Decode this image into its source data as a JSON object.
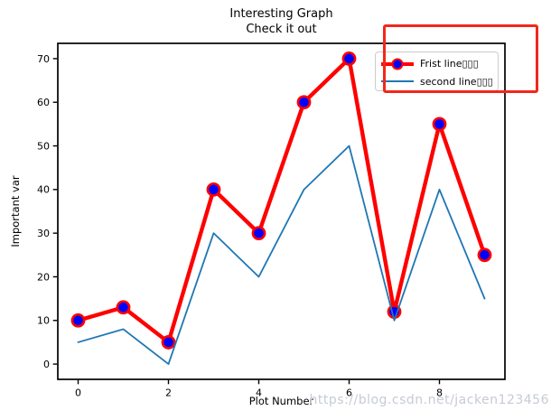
{
  "title": {
    "line1": "Interesting Graph",
    "line2": "Check it out"
  },
  "axes": {
    "xlabel": "Plot Number",
    "ylabel": "Important var",
    "x_ticks": [
      0,
      2,
      4,
      6,
      8
    ],
    "y_ticks": [
      0,
      10,
      20,
      30,
      40,
      50,
      60,
      70
    ],
    "spine_color": "#000000"
  },
  "chart_data": {
    "type": "line",
    "title": "Interesting Graph / Check it out",
    "xlabel": "Plot Number",
    "ylabel": "Important var",
    "x": [
      0,
      1,
      2,
      3,
      4,
      5,
      6,
      7,
      8,
      9
    ],
    "series": [
      {
        "name": "Frist line▯▯▯",
        "values": [
          10,
          13,
          5,
          40,
          30,
          60,
          70,
          12,
          55,
          25
        ],
        "color": "#ff0000",
        "linewidth": 4.4,
        "marker": {
          "shape": "circle",
          "fill": "#0000ff",
          "edge": "#ff0000",
          "edgewidth": 2.6,
          "radius": 6.6
        }
      },
      {
        "name": "second line▯▯▯",
        "values": [
          5,
          8,
          0,
          30,
          20,
          40,
          50,
          10,
          40,
          15
        ],
        "color": "#1f77b4",
        "linewidth": 1.8,
        "marker": null
      }
    ],
    "xlim": [
      -0.45,
      9.45
    ],
    "ylim": [
      -3.5,
      73.5
    ],
    "grid": false,
    "legend_position": "upper right"
  },
  "legend": {
    "background": "#ffffff",
    "border_color": "#cccccc"
  },
  "annotation": {
    "shape": "rectangle",
    "color": "#f2271b"
  },
  "watermark": {
    "text": "https://blog.csdn.net/jacken123456",
    "color": "#c6cbd4"
  }
}
